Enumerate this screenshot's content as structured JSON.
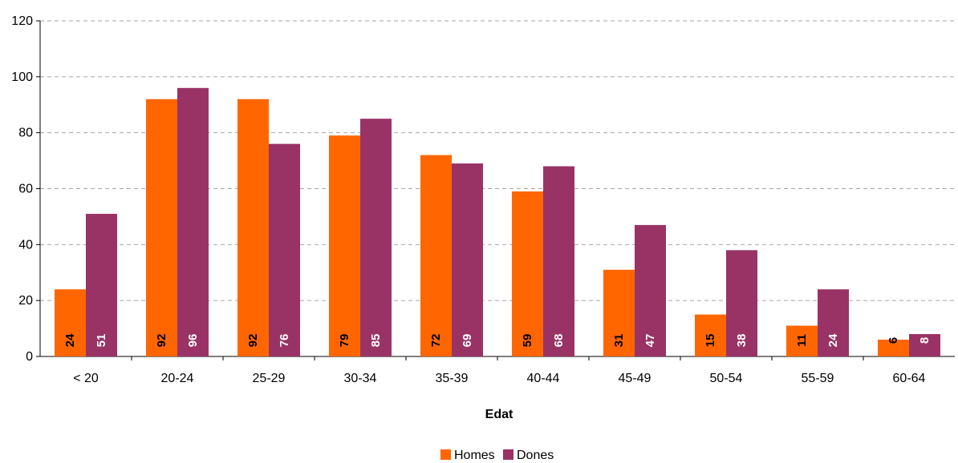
{
  "chart_data": {
    "type": "bar",
    "title": "",
    "xlabel": "Edat",
    "ylabel": "",
    "ylim": [
      0,
      120
    ],
    "yticks": [
      0,
      20,
      40,
      60,
      80,
      100,
      120
    ],
    "grid": true,
    "legend_position": "bottom",
    "categories": [
      "< 20",
      "20-24",
      "25-29",
      "30-34",
      "35-39",
      "40-44",
      "45-49",
      "50-54",
      "55-59",
      "60-64"
    ],
    "series": [
      {
        "name": "Homes",
        "color": "#FF6600",
        "label_color": "#000000",
        "values": [
          24,
          92,
          92,
          79,
          72,
          59,
          31,
          15,
          11,
          6
        ]
      },
      {
        "name": "Dones",
        "color": "#993366",
        "label_color": "#ffffff",
        "values": [
          51,
          96,
          76,
          85,
          69,
          68,
          47,
          38,
          24,
          8
        ]
      }
    ]
  }
}
